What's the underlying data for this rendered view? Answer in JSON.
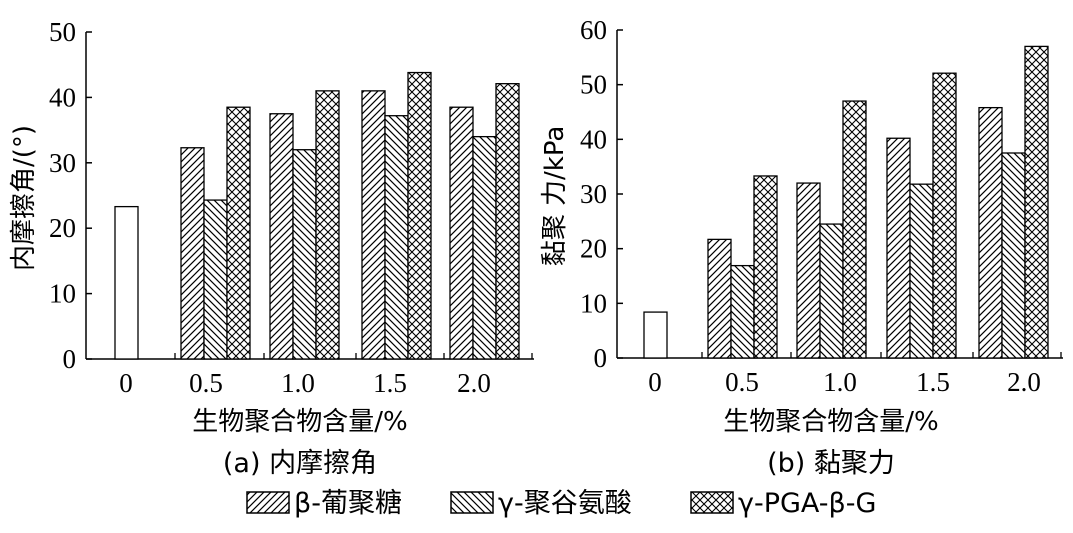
{
  "chart_data": [
    {
      "type": "bar",
      "caption": "(a) 内摩擦角",
      "xlabel": "生物聚合物含量/%",
      "ylabel": "内摩擦角/(°)",
      "ylim": [
        0,
        50
      ],
      "yticks": [
        0,
        10,
        20,
        30,
        40,
        50
      ],
      "categories": [
        "0",
        "0.5",
        "1.0",
        "1.5",
        "2.0"
      ],
      "control": 23.3,
      "series": [
        {
          "name": "β-葡聚糖",
          "values": [
            null,
            32.3,
            37.5,
            41.0,
            38.5
          ]
        },
        {
          "name": "γ-聚谷氨酸",
          "values": [
            null,
            24.3,
            32.0,
            37.2,
            34.0
          ]
        },
        {
          "name": "γ-PGA-β-G",
          "values": [
            null,
            38.5,
            41.0,
            43.8,
            42.1
          ]
        }
      ]
    },
    {
      "type": "bar",
      "caption": "(b) 黏聚力",
      "xlabel": "生物聚合物含量/%",
      "ylabel": "黏聚 力/kPa",
      "ylim": [
        0,
        60
      ],
      "yticks": [
        0,
        10,
        20,
        30,
        40,
        50,
        60
      ],
      "categories": [
        "0",
        "0.5",
        "1.0",
        "1.5",
        "2.0"
      ],
      "control": 8.4,
      "series": [
        {
          "name": "β-葡聚糖",
          "values": [
            null,
            21.7,
            32.0,
            40.2,
            45.8
          ]
        },
        {
          "name": "γ-聚谷氨酸",
          "values": [
            null,
            16.9,
            24.5,
            31.8,
            37.5
          ]
        },
        {
          "name": "γ-PGA-β-G",
          "values": [
            null,
            33.3,
            47.0,
            52.1,
            57.0
          ]
        }
      ]
    }
  ],
  "legend": [
    {
      "label": "β-葡聚糖",
      "pattern": "diag-right"
    },
    {
      "label": "γ-聚谷氨酸",
      "pattern": "diag-left"
    },
    {
      "label": "γ-PGA-β-G",
      "pattern": "cross"
    }
  ]
}
